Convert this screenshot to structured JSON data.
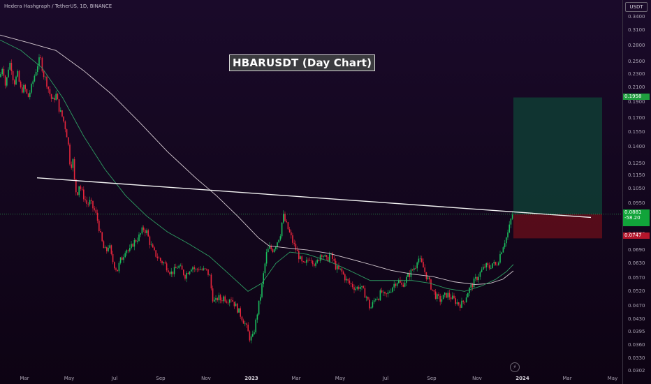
{
  "header": {
    "symbol_line": "Hedera Hashgraph / TetherUS, 1D, BINANCE",
    "currency": "USDT"
  },
  "annotation": {
    "title": "HBARUSDT (Day Chart)"
  },
  "colors": {
    "up": "#1bbf5e",
    "down": "#e8263c",
    "ma_fast": "#2e9e63",
    "ma_slow": "#d6cbd2",
    "trendline": "#f2f2f2",
    "target_zone": "#0f3a33",
    "stop_zone": "#5a0d1a"
  },
  "price_labels": {
    "target": "0.1958",
    "entry": "0.0881",
    "entry_diff": "-58.20",
    "stop": "0.0747"
  },
  "chart_data": {
    "type": "candlestick",
    "title": "HBARUSDT (Day Chart)",
    "y_scale": "log",
    "ylim": [
      0.0295,
      0.36
    ],
    "y_ticks": [
      "0.3400",
      "0.3100",
      "0.2800",
      "0.2500",
      "0.2300",
      "0.2100",
      "0.1900",
      "0.1700",
      "0.1550",
      "0.1400",
      "0.1250",
      "0.1150",
      "0.1050",
      "0.0950",
      "0.0860",
      "0.0770",
      "0.0690",
      "0.0630",
      "0.0570",
      "0.0520",
      "0.0470",
      "0.0430",
      "0.0395",
      "0.0360",
      "0.0330",
      "0.0302"
    ],
    "x_ticks": [
      {
        "label": "Mar",
        "bold": false
      },
      {
        "label": "May",
        "bold": false
      },
      {
        "label": "Jul",
        "bold": false
      },
      {
        "label": "Sep",
        "bold": false
      },
      {
        "label": "Nov",
        "bold": false
      },
      {
        "label": "2023",
        "bold": true
      },
      {
        "label": "Mar",
        "bold": false
      },
      {
        "label": "May",
        "bold": false
      },
      {
        "label": "Jul",
        "bold": false
      },
      {
        "label": "Sep",
        "bold": false
      },
      {
        "label": "Nov",
        "bold": false
      },
      {
        "label": "2024",
        "bold": true
      },
      {
        "label": "Mar",
        "bold": false
      },
      {
        "label": "May",
        "bold": false
      }
    ],
    "close_path": [
      [
        0,
        0.225
      ],
      [
        4,
        0.245
      ],
      [
        8,
        0.21
      ],
      [
        12,
        0.24
      ],
      [
        15,
        0.25
      ],
      [
        20,
        0.215
      ],
      [
        25,
        0.23
      ],
      [
        30,
        0.205
      ],
      [
        35,
        0.21
      ],
      [
        40,
        0.195
      ],
      [
        45,
        0.21
      ],
      [
        50,
        0.23
      ],
      [
        55,
        0.25
      ],
      [
        58,
        0.255
      ],
      [
        62,
        0.23
      ],
      [
        66,
        0.22
      ],
      [
        70,
        0.205
      ],
      [
        75,
        0.19
      ],
      [
        80,
        0.2
      ],
      [
        85,
        0.18
      ],
      [
        90,
        0.17
      ],
      [
        95,
        0.155
      ],
      [
        98,
        0.14
      ],
      [
        101,
        0.12
      ],
      [
        104,
        0.13
      ],
      [
        107,
        0.108
      ],
      [
        110,
        0.1
      ],
      [
        113,
        0.108
      ],
      [
        117,
        0.103
      ],
      [
        121,
        0.098
      ],
      [
        125,
        0.094
      ],
      [
        129,
        0.096
      ],
      [
        133,
        0.092
      ],
      [
        136,
        0.09
      ],
      [
        140,
        0.084
      ],
      [
        144,
        0.076
      ],
      [
        148,
        0.07
      ],
      [
        152,
        0.068
      ],
      [
        156,
        0.072
      ],
      [
        160,
        0.065
      ],
      [
        164,
        0.062
      ],
      [
        168,
        0.06
      ],
      [
        172,
        0.064
      ],
      [
        176,
        0.066
      ],
      [
        180,
        0.07
      ],
      [
        185,
        0.068
      ],
      [
        190,
        0.072
      ],
      [
        195,
        0.074
      ],
      [
        200,
        0.076
      ],
      [
        205,
        0.08
      ],
      [
        210,
        0.078
      ],
      [
        215,
        0.072
      ],
      [
        220,
        0.068
      ],
      [
        225,
        0.066
      ],
      [
        230,
        0.064
      ],
      [
        235,
        0.063
      ],
      [
        240,
        0.061
      ],
      [
        245,
        0.059
      ],
      [
        250,
        0.06
      ],
      [
        255,
        0.062
      ],
      [
        260,
        0.06
      ],
      [
        265,
        0.058
      ],
      [
        270,
        0.06
      ],
      [
        275,
        0.062
      ],
      [
        280,
        0.06
      ],
      [
        285,
        0.061
      ],
      [
        290,
        0.06
      ],
      [
        295,
        0.06
      ],
      [
        300,
        0.058
      ],
      [
        304,
        0.05
      ],
      [
        308,
        0.048
      ],
      [
        312,
        0.05
      ],
      [
        316,
        0.049
      ],
      [
        320,
        0.05
      ],
      [
        325,
        0.049
      ],
      [
        330,
        0.05
      ],
      [
        335,
        0.048
      ],
      [
        340,
        0.046
      ],
      [
        345,
        0.044
      ],
      [
        350,
        0.042
      ],
      [
        354,
        0.04
      ],
      [
        358,
        0.0375
      ],
      [
        362,
        0.038
      ],
      [
        366,
        0.042
      ],
      [
        370,
        0.047
      ],
      [
        374,
        0.052
      ],
      [
        378,
        0.06
      ],
      [
        382,
        0.068
      ],
      [
        386,
        0.07
      ],
      [
        390,
        0.069
      ],
      [
        394,
        0.071
      ],
      [
        398,
        0.074
      ],
      [
        402,
        0.078
      ],
      [
        405,
        0.088
      ],
      [
        408,
        0.084
      ],
      [
        412,
        0.08
      ],
      [
        416,
        0.076
      ],
      [
        420,
        0.072
      ],
      [
        424,
        0.069
      ],
      [
        428,
        0.066
      ],
      [
        432,
        0.063
      ],
      [
        436,
        0.062
      ],
      [
        440,
        0.064
      ],
      [
        444,
        0.066
      ],
      [
        448,
        0.064
      ],
      [
        452,
        0.062
      ],
      [
        456,
        0.065
      ],
      [
        460,
        0.068
      ],
      [
        464,
        0.066
      ],
      [
        468,
        0.064
      ],
      [
        472,
        0.067
      ],
      [
        476,
        0.065
      ],
      [
        480,
        0.062
      ],
      [
        484,
        0.06
      ],
      [
        488,
        0.06
      ],
      [
        492,
        0.058
      ],
      [
        496,
        0.056
      ],
      [
        500,
        0.055
      ],
      [
        505,
        0.054
      ],
      [
        510,
        0.053
      ],
      [
        515,
        0.054
      ],
      [
        520,
        0.052
      ],
      [
        525,
        0.05
      ],
      [
        530,
        0.046
      ],
      [
        534,
        0.048
      ],
      [
        538,
        0.05
      ],
      [
        542,
        0.05
      ],
      [
        546,
        0.052
      ],
      [
        550,
        0.05
      ],
      [
        555,
        0.051
      ],
      [
        560,
        0.053
      ],
      [
        565,
        0.055
      ],
      [
        570,
        0.056
      ],
      [
        575,
        0.054
      ],
      [
        580,
        0.056
      ],
      [
        585,
        0.058
      ],
      [
        590,
        0.06
      ],
      [
        595,
        0.062
      ],
      [
        598,
        0.066
      ],
      [
        601,
        0.064
      ],
      [
        605,
        0.062
      ],
      [
        610,
        0.058
      ],
      [
        615,
        0.055
      ],
      [
        620,
        0.052
      ],
      [
        625,
        0.05
      ],
      [
        630,
        0.049
      ],
      [
        635,
        0.05
      ],
      [
        640,
        0.051
      ],
      [
        645,
        0.05
      ],
      [
        650,
        0.049
      ],
      [
        655,
        0.048
      ],
      [
        660,
        0.0475
      ],
      [
        665,
        0.049
      ],
      [
        670,
        0.052
      ],
      [
        675,
        0.054
      ],
      [
        680,
        0.056
      ],
      [
        685,
        0.058
      ],
      [
        690,
        0.06
      ],
      [
        695,
        0.062
      ],
      [
        700,
        0.061
      ],
      [
        705,
        0.063
      ],
      [
        710,
        0.062
      ],
      [
        714,
        0.065
      ],
      [
        718,
        0.069
      ],
      [
        722,
        0.073
      ],
      [
        726,
        0.076
      ],
      [
        730,
        0.082
      ],
      [
        733,
        0.088
      ],
      [
        735,
        0.0881
      ]
    ],
    "ma_fast_path": [
      [
        0,
        0.29
      ],
      [
        30,
        0.27
      ],
      [
        60,
        0.24
      ],
      [
        90,
        0.195
      ],
      [
        120,
        0.15
      ],
      [
        150,
        0.12
      ],
      [
        180,
        0.1
      ],
      [
        210,
        0.087
      ],
      [
        240,
        0.078
      ],
      [
        270,
        0.072
      ],
      [
        300,
        0.066
      ],
      [
        330,
        0.058
      ],
      [
        355,
        0.052
      ],
      [
        375,
        0.055
      ],
      [
        395,
        0.063
      ],
      [
        415,
        0.068
      ],
      [
        440,
        0.067
      ],
      [
        470,
        0.064
      ],
      [
        500,
        0.06
      ],
      [
        530,
        0.056
      ],
      [
        560,
        0.056
      ],
      [
        590,
        0.056
      ],
      [
        615,
        0.055
      ],
      [
        640,
        0.053
      ],
      [
        665,
        0.052
      ],
      [
        690,
        0.054
      ],
      [
        710,
        0.0565
      ],
      [
        725,
        0.0595
      ],
      [
        735,
        0.0625
      ]
    ],
    "ma_slow_path": [
      [
        0,
        0.3
      ],
      [
        40,
        0.285
      ],
      [
        80,
        0.27
      ],
      [
        120,
        0.235
      ],
      [
        160,
        0.2
      ],
      [
        200,
        0.165
      ],
      [
        240,
        0.135
      ],
      [
        280,
        0.113
      ],
      [
        310,
        0.1
      ],
      [
        340,
        0.087
      ],
      [
        370,
        0.075
      ],
      [
        385,
        0.071
      ],
      [
        410,
        0.07
      ],
      [
        440,
        0.069
      ],
      [
        470,
        0.0675
      ],
      [
        500,
        0.065
      ],
      [
        530,
        0.0625
      ],
      [
        560,
        0.06
      ],
      [
        590,
        0.0585
      ],
      [
        620,
        0.0575
      ],
      [
        650,
        0.0555
      ],
      [
        680,
        0.0545
      ],
      [
        700,
        0.0548
      ],
      [
        720,
        0.0565
      ],
      [
        735,
        0.0598
      ]
    ],
    "trendline": {
      "from": [
        53,
        0.113
      ],
      "to": [
        846,
        0.0862
      ]
    },
    "long_position": {
      "x_range": [
        735,
        862
      ],
      "target": 0.1958,
      "entry": 0.0881,
      "stop": 0.0747
    }
  }
}
